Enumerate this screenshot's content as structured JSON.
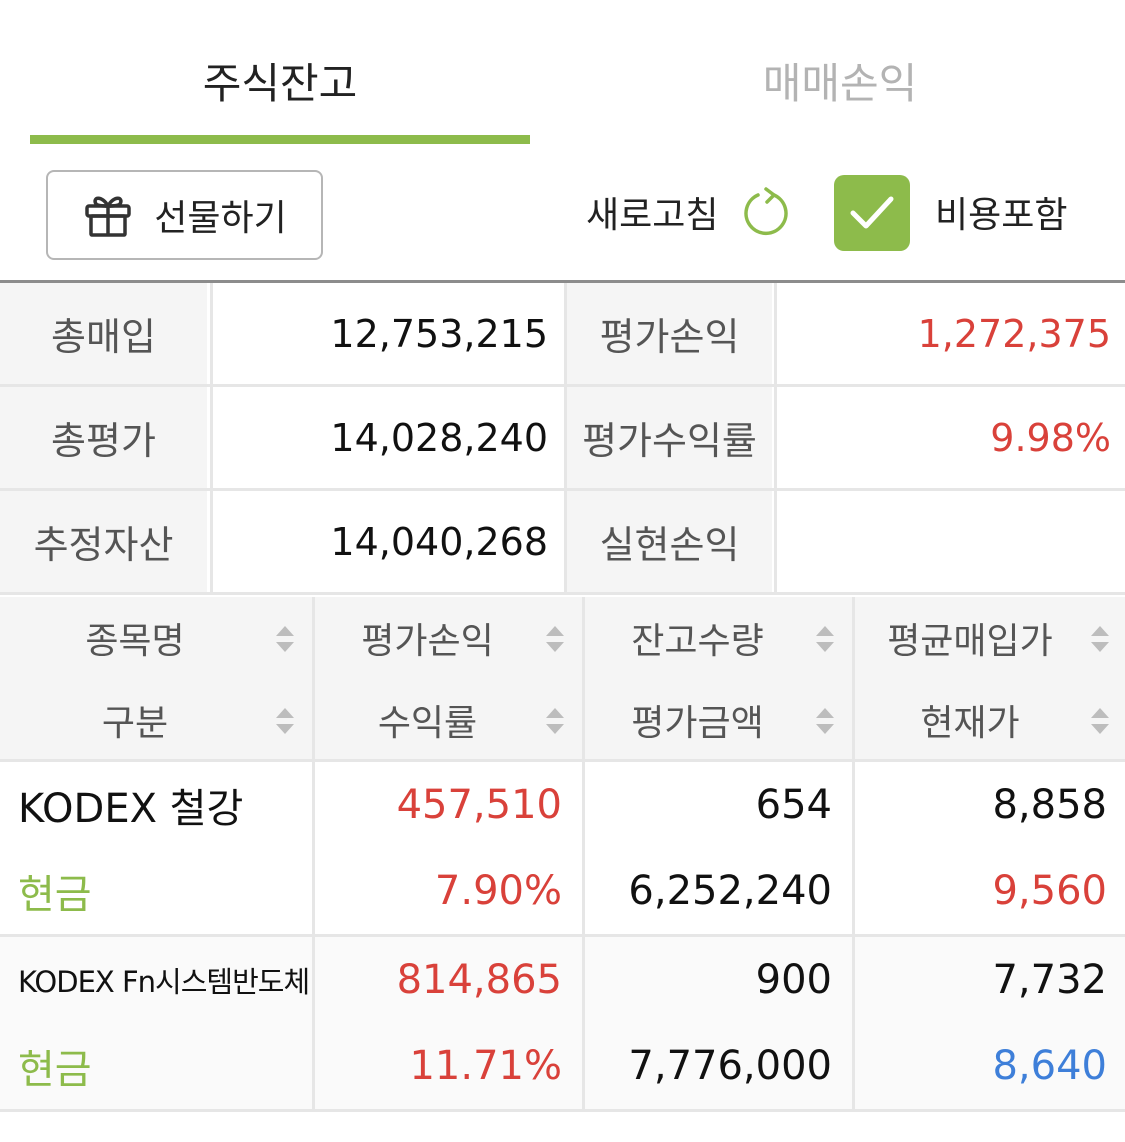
{
  "tabs": [
    {
      "label": "주식잔고",
      "active": true
    },
    {
      "label": "매매손익",
      "active": false
    }
  ],
  "toolbar": {
    "gift_label": "선물하기",
    "refresh_label": "새로고침",
    "include_fee_label": "비용포함",
    "include_fee_checked": true
  },
  "summary": {
    "rows": [
      {
        "label1": "총매입",
        "value1": "12,753,215",
        "label2": "평가손익",
        "value2": "1,272,375"
      },
      {
        "label1": "총평가",
        "value1": "14,028,240",
        "label2": "평가수익률",
        "value2": "9.98%"
      },
      {
        "label1": "추정자산",
        "value1": "14,040,268",
        "label2": "실현손익",
        "value2": ""
      }
    ]
  },
  "holdings_header": {
    "columns": [
      {
        "line1": "종목명",
        "line2": "구분"
      },
      {
        "line1": "평가손익",
        "line2": "수익률"
      },
      {
        "line1": "잔고수량",
        "line2": "평가금액"
      },
      {
        "line1": "평균매입가",
        "line2": "현재가"
      }
    ]
  },
  "holdings": [
    {
      "name": "KODEX 철강",
      "type": "현금",
      "eval_pl": "457,510",
      "return_rate": "7.90%",
      "quantity": "654",
      "eval_amount": "6,252,240",
      "avg_price": "8,858",
      "current_price": "9,560"
    },
    {
      "name": "KODEX Fn시스템반도체",
      "type": "현금",
      "eval_pl": "814,865",
      "return_rate": "11.71%",
      "quantity": "900",
      "eval_amount": "7,776,000",
      "avg_price": "7,732",
      "current_price": "8,640"
    }
  ],
  "colors": {
    "accent_green": "#8dbb4b",
    "profit_red": "#d9413a",
    "loss_blue": "#3e7fd9"
  },
  "icons": {
    "gift": "gift-icon",
    "refresh": "refresh-icon",
    "check": "check-icon",
    "sort": "sort-icon"
  }
}
